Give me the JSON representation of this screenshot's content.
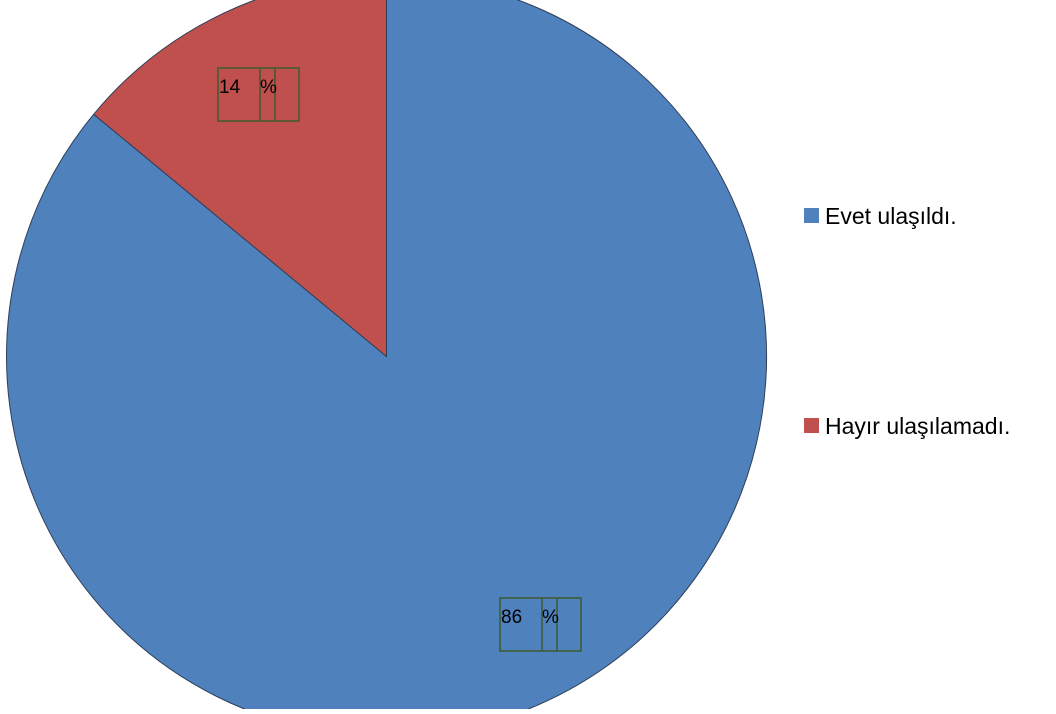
{
  "chart_data": {
    "type": "pie",
    "title": "",
    "categories": [
      "Evet ulaşıldı.",
      "Hayır ulaşılamadı."
    ],
    "values": [
      86,
      14
    ],
    "data_labels": [
      "86",
      "14"
    ],
    "data_label_suffix": "%",
    "colors": [
      "#4f81bd",
      "#c0504d"
    ],
    "legend_position": "right",
    "start_angle": "12 o'clock",
    "direction": "clockwise"
  }
}
